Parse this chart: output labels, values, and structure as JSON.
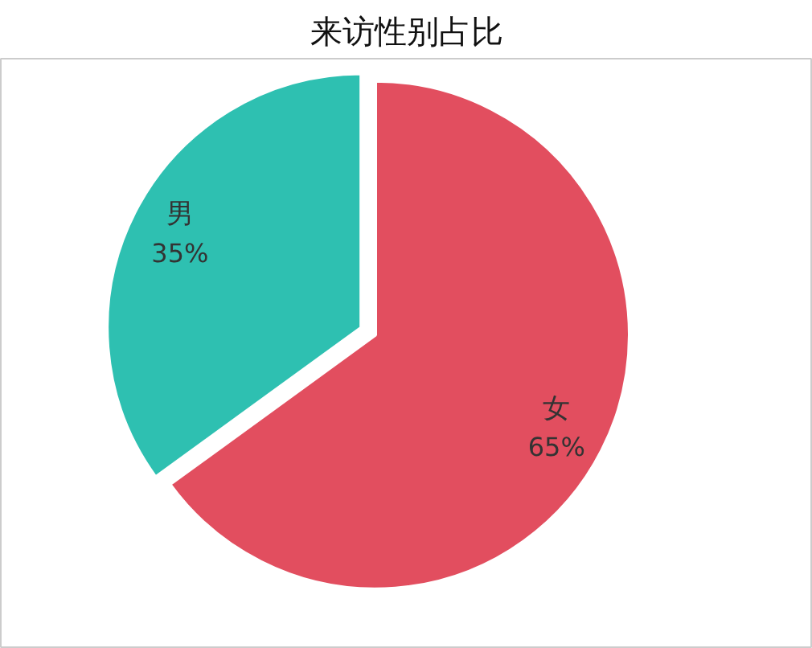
{
  "chart_data": {
    "type": "pie",
    "title": "来访性别占比",
    "categories": [
      "女",
      "男"
    ],
    "values": [
      65,
      35
    ],
    "colors": [
      "#e24e5f",
      "#2ec0b1"
    ],
    "value_labels": [
      "65%",
      "35%"
    ]
  }
}
